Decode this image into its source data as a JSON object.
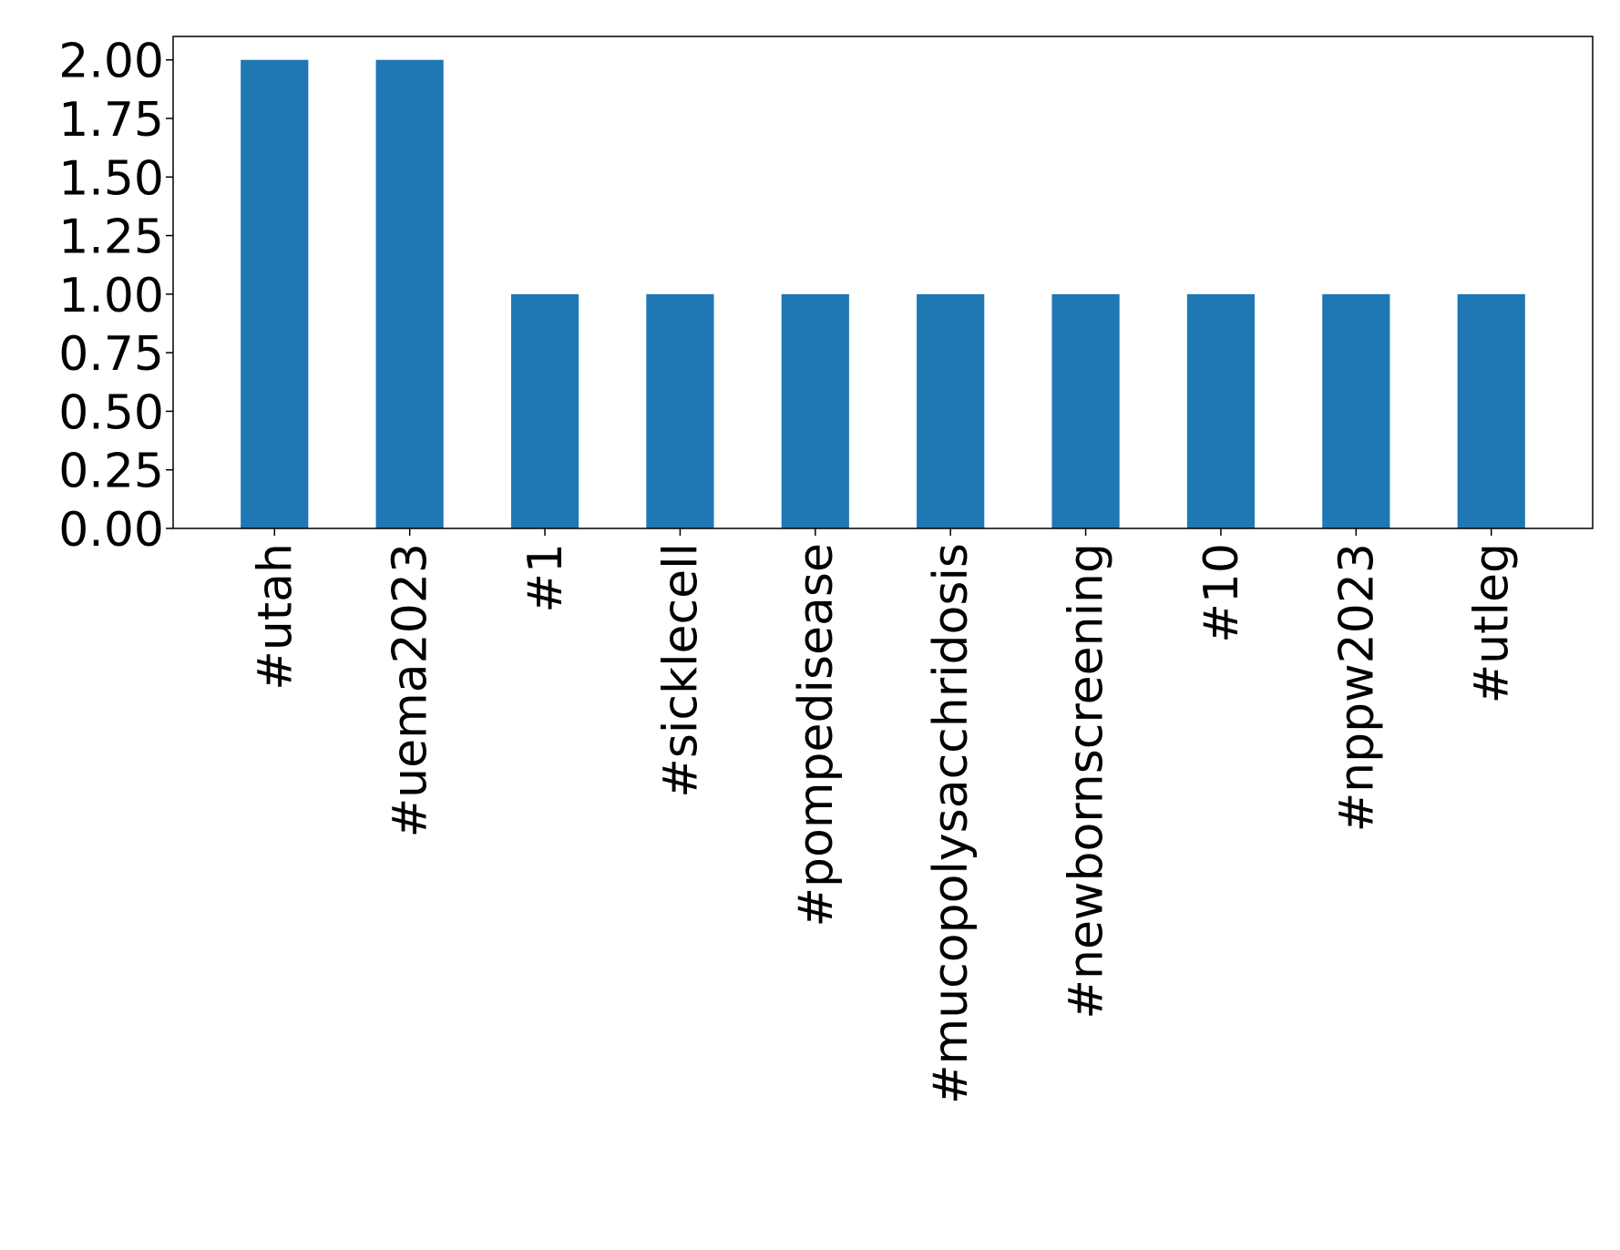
{
  "chart_data": {
    "type": "bar",
    "title": "",
    "xlabel": "",
    "ylabel": "",
    "categories": [
      "#utah",
      "#uema2023",
      "#1",
      "#sicklecell",
      "#pompedisease",
      "#mucopolysacchridosis",
      "#newbornscreening",
      "#10",
      "#nppw2023",
      "#utleg"
    ],
    "values": [
      2,
      2,
      1,
      1,
      1,
      1,
      1,
      1,
      1,
      1
    ],
    "ylim": [
      0,
      2.1
    ],
    "yticks": [
      0.0,
      0.25,
      0.5,
      0.75,
      1.0,
      1.25,
      1.5,
      1.75,
      2.0
    ],
    "ytick_labels": [
      "0.00",
      "0.25",
      "0.50",
      "0.75",
      "1.00",
      "1.25",
      "1.50",
      "1.75",
      "2.00"
    ],
    "x_tick_rotation": "vertical",
    "grid": false,
    "legend": "none",
    "colors": {
      "bar": "#1f77b4",
      "axis": "#000000",
      "background": "#ffffff"
    }
  }
}
